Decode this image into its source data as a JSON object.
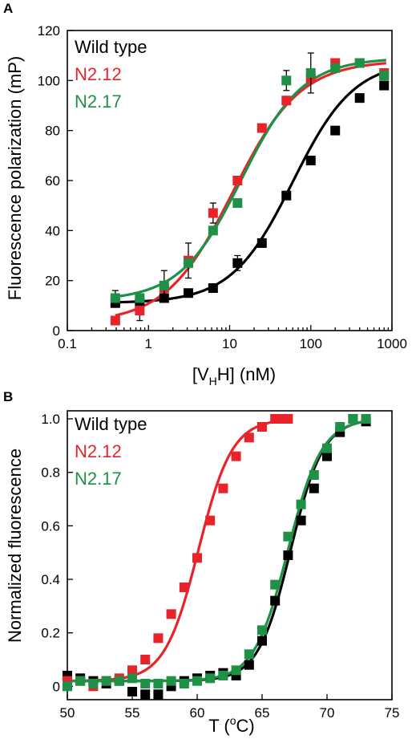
{
  "chart_data": [
    {
      "panel_label": "A",
      "type": "scatter",
      "xscale": "log",
      "xlabel_parts": [
        "[V",
        "H",
        "H] (nM)"
      ],
      "ylabel": "Fluorescence polarization (mP)",
      "xlim": [
        0.1,
        1000
      ],
      "ylim": [
        0,
        120
      ],
      "xticks": [
        0.1,
        1,
        10,
        100,
        1000
      ],
      "xtick_labels": [
        "0.1",
        "1",
        "10",
        "100",
        "1000"
      ],
      "yticks": [
        0,
        20,
        40,
        60,
        80,
        100,
        120
      ],
      "ytick_labels": [
        "0",
        "20",
        "40",
        "60",
        "80",
        "100",
        "120"
      ],
      "grid": false,
      "legend_placement": "top-left",
      "series": [
        {
          "name": "Wild type",
          "color": "#000000",
          "x": [
            0.39,
            0.78,
            1.56,
            3.1,
            6.25,
            12.5,
            25,
            50,
            100,
            200,
            400,
            800
          ],
          "y": [
            11,
            11,
            13,
            15,
            17,
            27,
            35,
            54,
            68,
            80,
            93,
            98
          ],
          "err": [
            1,
            1,
            1,
            1,
            1,
            3,
            1,
            1,
            1,
            1,
            1,
            1
          ],
          "fit": {
            "bottom": 11,
            "top": 108,
            "ec50": 60,
            "hill": 1.15
          }
        },
        {
          "name": "N2.12",
          "color": "#e8232a",
          "x": [
            0.39,
            0.78,
            1.56,
            3.1,
            6.25,
            12.5,
            25,
            50,
            100,
            200,
            400,
            800
          ],
          "y": [
            4,
            8,
            17,
            28,
            47,
            60,
            81,
            92,
            101,
            107,
            107,
            103
          ],
          "err": [
            1,
            4,
            1,
            7,
            4,
            1,
            1,
            1,
            1,
            1,
            1,
            1
          ],
          "fit": {
            "bottom": 3,
            "top": 108,
            "ec50": 11,
            "hill": 1.05
          }
        },
        {
          "name": "N2.17",
          "color": "#1e9146",
          "x": [
            0.39,
            0.78,
            1.56,
            3.1,
            6.25,
            12.5,
            50,
            100,
            200,
            400,
            800
          ],
          "y": [
            13,
            13,
            18,
            27,
            40,
            51,
            100,
            103,
            105,
            107,
            102
          ],
          "err": [
            3,
            1,
            6,
            1,
            1,
            1,
            4,
            8,
            1,
            1,
            1
          ],
          "fit": {
            "bottom": 12,
            "top": 109,
            "ec50": 14,
            "hill": 1.15
          }
        }
      ]
    },
    {
      "panel_label": "B",
      "type": "scatter",
      "xlabel": "T (",
      "xlabel_sup": "o",
      "xlabel_end": "C)",
      "ylabel": "Normalized fluorescence",
      "xlim": [
        50,
        75
      ],
      "ylim": [
        -0.05,
        1.03
      ],
      "xticks": [
        50,
        55,
        60,
        65,
        70,
        75
      ],
      "xtick_labels": [
        "50",
        "55",
        "60",
        "65",
        "70",
        "75"
      ],
      "yticks": [
        0,
        0.2,
        0.4,
        0.6,
        0.8,
        1.0
      ],
      "ytick_labels": [
        "0",
        "0.2",
        "0.4",
        "0.6",
        "0.8",
        "1.0"
      ],
      "grid": false,
      "legend_placement": "top-left",
      "series": [
        {
          "name": "Wild type",
          "color": "#000000",
          "x": [
            50,
            51,
            52,
            53,
            54,
            55,
            56,
            57,
            58,
            59,
            60,
            61,
            62,
            63,
            64,
            65,
            66,
            67,
            68,
            69,
            70,
            71,
            72,
            73
          ],
          "y": [
            0.04,
            0.03,
            0.02,
            0.01,
            0.02,
            -0.02,
            -0.03,
            -0.03,
            0.0,
            0.02,
            0.03,
            0.04,
            0.05,
            0.04,
            0.08,
            0.17,
            0.32,
            0.49,
            0.62,
            0.74,
            0.86,
            0.95,
            1.0,
            0.99
          ],
          "fit": {
            "mid": 67.2,
            "slope": 1.25
          }
        },
        {
          "name": "N2.12",
          "color": "#e8232a",
          "x": [
            50,
            51,
            52,
            53,
            54,
            55,
            56,
            57,
            58,
            59,
            60,
            61,
            62,
            63,
            64,
            65,
            66,
            66.5,
            67
          ],
          "y": [
            0.02,
            0.02,
            0.0,
            0.02,
            0.03,
            0.06,
            0.1,
            0.18,
            0.27,
            0.37,
            0.48,
            0.62,
            0.74,
            0.86,
            0.93,
            0.97,
            1.0,
            1.0,
            1.0
          ],
          "fit": {
            "mid": 60.1,
            "slope": 1.3
          }
        },
        {
          "name": "N2.17",
          "color": "#1e9146",
          "x": [
            50,
            51,
            52,
            53,
            54,
            55,
            56,
            57,
            58,
            59,
            60,
            61,
            62,
            63,
            64,
            65,
            66,
            67,
            68,
            69,
            70,
            71,
            72,
            73
          ],
          "y": [
            0.0,
            0.02,
            0.01,
            0.02,
            0.02,
            0.03,
            0.01,
            0.01,
            0.02,
            0.01,
            0.02,
            0.03,
            0.04,
            0.06,
            0.12,
            0.21,
            0.38,
            0.56,
            0.68,
            0.79,
            0.89,
            0.97,
            1.0,
            1.0
          ],
          "fit": {
            "mid": 67.0,
            "slope": 1.3
          }
        }
      ]
    }
  ]
}
